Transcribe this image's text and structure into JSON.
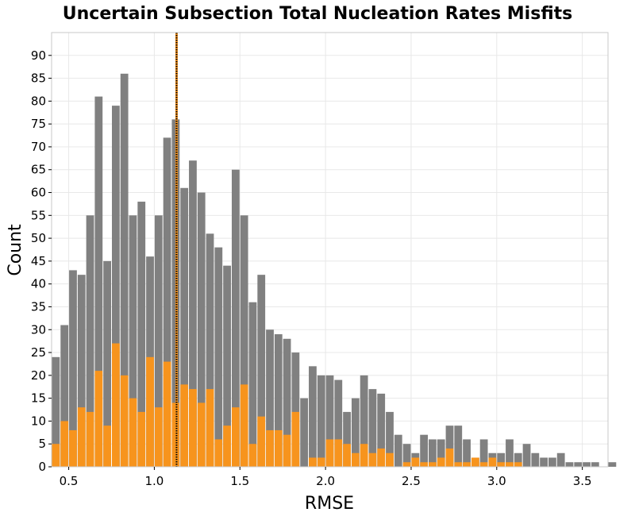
{
  "chart_data": {
    "type": "bar",
    "title": "Uncertain Subsection Total Nucleation Rates Misfits",
    "xlabel": "RMSE",
    "ylabel": "Count",
    "xlim": [
      0.4,
      3.65
    ],
    "ylim": [
      0,
      95
    ],
    "xticks": [
      0.5,
      1.0,
      1.5,
      2.0,
      2.5,
      3.0,
      3.5
    ],
    "xtick_labels": [
      "0.5",
      "1.0",
      "1.5",
      "2.0",
      "2.5",
      "3.0",
      "3.5"
    ],
    "yticks": [
      0,
      5,
      10,
      15,
      20,
      25,
      30,
      35,
      40,
      45,
      50,
      55,
      60,
      65,
      70,
      75,
      80,
      85,
      90
    ],
    "grid": true,
    "bin_start": 0.4,
    "bin_width": 0.05,
    "series": [
      {
        "color": "#808080",
        "values": [
          24,
          31,
          43,
          42,
          55,
          81,
          45,
          79,
          86,
          55,
          58,
          46,
          55,
          72,
          76,
          61,
          67,
          60,
          51,
          48,
          44,
          65,
          55,
          36,
          42,
          30,
          29,
          28,
          25,
          15,
          22,
          20,
          20,
          19,
          12,
          15,
          20,
          17,
          16,
          12,
          7,
          5,
          3,
          7,
          6,
          6,
          9,
          9,
          6,
          2,
          6,
          3,
          3,
          6,
          3,
          5,
          3,
          2,
          2,
          3,
          1,
          1,
          1,
          1,
          0,
          1
        ]
      },
      {
        "color": "#f7941d",
        "values": [
          5,
          10,
          8,
          13,
          12,
          21,
          9,
          27,
          20,
          15,
          12,
          24,
          13,
          23,
          14,
          18,
          17,
          14,
          17,
          6,
          9,
          13,
          18,
          5,
          11,
          8,
          8,
          7,
          12,
          0,
          2,
          2,
          6,
          6,
          5,
          3,
          5,
          3,
          4,
          3,
          0,
          1,
          2,
          1,
          1,
          2,
          4,
          1,
          1,
          2,
          1,
          2,
          1,
          1,
          1,
          0,
          0,
          0,
          0,
          0,
          0,
          0,
          0,
          0,
          0,
          0
        ]
      }
    ],
    "vlines": [
      {
        "x": 1.13,
        "color": "#f7941d",
        "style": "solid"
      },
      {
        "x": 1.13,
        "color": "#000000",
        "style": "dotted"
      }
    ]
  }
}
